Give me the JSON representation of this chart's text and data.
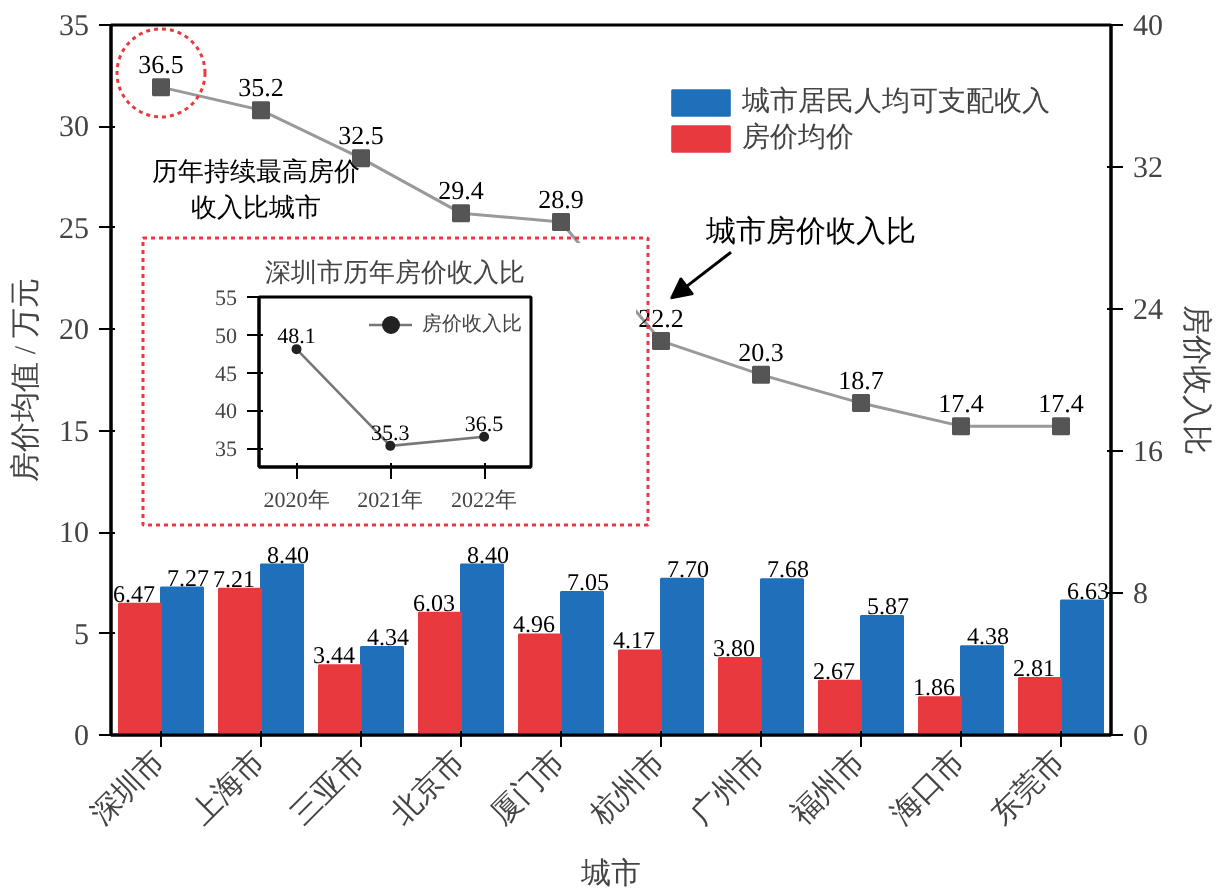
{
  "chart_data": [
    {
      "type": "bar",
      "xlabel": "城市",
      "ylabel": "房价均值 / 万元",
      "y2label": "房价收入比",
      "categories": [
        "深圳市",
        "上海市",
        "三亚市",
        "北京市",
        "厦门市",
        "杭州市",
        "广州市",
        "福州市",
        "海口市",
        "东莞市"
      ],
      "series": [
        {
          "name": "城市居民人均可支配收入",
          "color": "#1f6fba",
          "values": [
            7.27,
            8.4,
            4.34,
            8.4,
            7.05,
            7.7,
            7.68,
            5.87,
            4.38,
            6.63
          ],
          "value_labels": [
            "7.27",
            "8.40",
            "4.34",
            "8.40",
            "7.05",
            "7.70",
            "7.68",
            "5.87",
            "4.38",
            "6.63"
          ]
        },
        {
          "name": "房价均价",
          "color": "#e8393f",
          "values": [
            6.47,
            7.21,
            3.44,
            6.03,
            4.96,
            4.17,
            3.8,
            2.67,
            1.86,
            2.81
          ],
          "value_labels": [
            "6.47",
            "7.21",
            "3.44",
            "6.03",
            "4.96",
            "4.17",
            "3.80",
            "2.67",
            "1.86",
            "2.81"
          ]
        },
        {
          "type": "line",
          "axis": "y2",
          "color": "#555555",
          "marker": "square",
          "values": [
            36.5,
            35.2,
            32.5,
            29.4,
            28.9,
            22.2,
            20.3,
            18.7,
            17.4,
            17.4
          ],
          "value_labels": [
            "36.5",
            "35.2",
            "32.5",
            "29.4",
            "28.9",
            "22.2",
            "20.3",
            "18.7",
            "17.4",
            "17.4"
          ]
        }
      ],
      "ylim": [
        0,
        35
      ],
      "yticks": [
        0,
        5,
        10,
        15,
        20,
        25,
        30,
        35
      ],
      "y2lim": [
        0,
        40
      ],
      "y2ticks": [
        0,
        8,
        16,
        24,
        32,
        40
      ],
      "grid": false,
      "legend": "top right",
      "annotations": [
        "历年持续最高房价收入比城市",
        "城市房价收入比"
      ]
    },
    {
      "type": "line",
      "title": "深圳市历年房价收入比",
      "categories": [
        "2020年",
        "2021年",
        "2022年"
      ],
      "series": [
        {
          "name": "房价收入比",
          "color": "#777777",
          "values": [
            48.1,
            35.3,
            36.5
          ]
        }
      ],
      "ylim": [
        32.5,
        55
      ],
      "yticks": [
        35,
        40,
        45,
        50,
        55
      ],
      "marker": "circle",
      "data_labels": true,
      "legend": "top right",
      "grid": false
    }
  ]
}
